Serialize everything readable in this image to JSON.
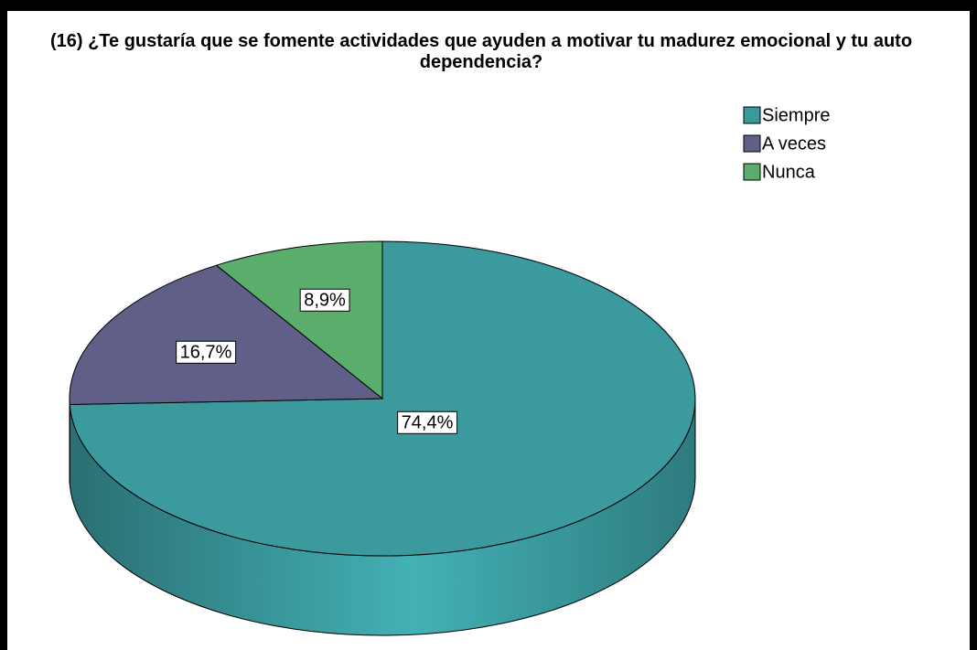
{
  "chart_data": {
    "type": "pie",
    "title": "(16) ¿Te gustaría que se fomente actividades que ayuden a motivar tu madurez emocional y tu auto dependencia?",
    "categories": [
      "Siempre",
      "A veces",
      "Nunca"
    ],
    "values": [
      74.4,
      16.7,
      8.9
    ],
    "value_labels": [
      "74,4%",
      "16,7%",
      "8,9%"
    ],
    "colors": [
      "#3a9a9e",
      "#5f5f87",
      "#5aad6a"
    ],
    "legend": "top-right"
  }
}
